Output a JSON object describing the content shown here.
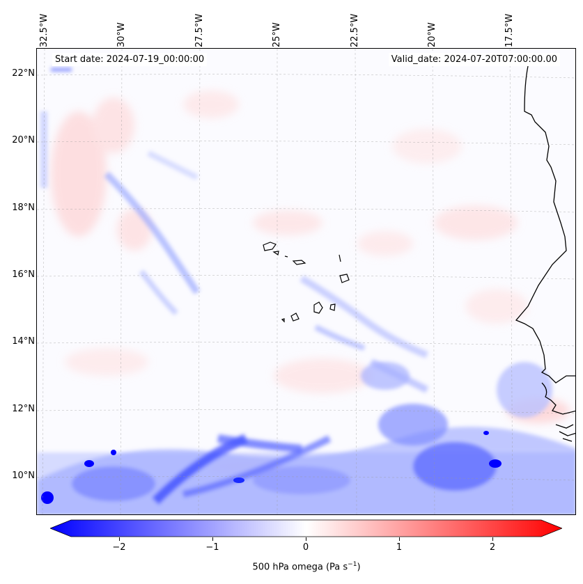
{
  "map": {
    "start_date": "Start date: 2024-07-19_00:00:00",
    "valid_date": "Valid_date: 2024-07-20T07:00:00.00",
    "lon_labels": [
      "32.5°W",
      "30°W",
      "27.5°W",
      "25°W",
      "22.5°W",
      "20°W",
      "17.5°W"
    ],
    "lat_labels": [
      "22°N",
      "20°N",
      "18°N",
      "16°N",
      "14°N",
      "12°N",
      "10°N"
    ],
    "colors": {
      "negative": "#0000ff",
      "neutral": "#ffffff",
      "positive": "#ff0000",
      "coast": "#000000"
    }
  },
  "colorbar": {
    "ticks": [
      "−2",
      "−1",
      "0",
      "1",
      "2"
    ],
    "tick_values": [
      -2,
      -1,
      0,
      1,
      2
    ],
    "range": [
      -2.75,
      2.75
    ],
    "label_main": "500 hPa omega (Pa s",
    "label_sup": "−1",
    "label_end": ")"
  }
}
